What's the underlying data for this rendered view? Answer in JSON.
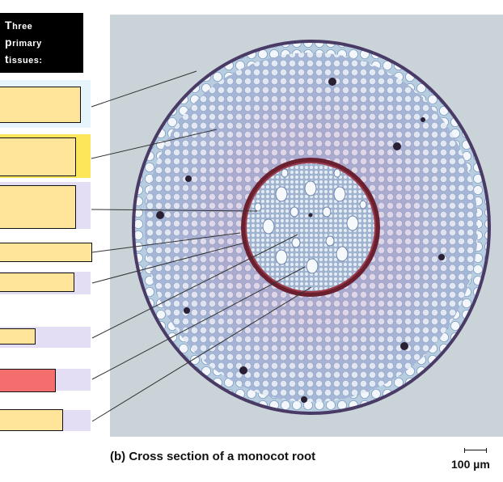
{
  "header": {
    "lines": [
      "Three",
      "primary",
      "tissues:"
    ]
  },
  "caption": "(b) Cross section of a monocot root",
  "scale": {
    "label": "100 µm"
  },
  "colors": {
    "answer_box": "#ffe59a",
    "answer_box_highlight": "#f46e6e",
    "band_blue": "#e6f4fb",
    "band_yellow": "#fde65a",
    "band_lavender": "#e3def3"
  },
  "label_boxes": [
    {
      "name": "dermal-tissue-box",
      "band": "blue",
      "highlighted": false
    },
    {
      "name": "ground-tissue-box",
      "band": "yellow",
      "highlighted": false
    },
    {
      "name": "vascular-tissue-box",
      "band": "lavender",
      "highlighted": false
    },
    {
      "name": "label-box-4",
      "band": "none",
      "highlighted": false
    },
    {
      "name": "label-box-5",
      "band": "lavender",
      "highlighted": false
    },
    {
      "name": "label-box-6",
      "band": "lavender",
      "highlighted": false
    },
    {
      "name": "label-box-7",
      "band": "lavender",
      "highlighted": true
    },
    {
      "name": "label-box-8",
      "band": "lavender",
      "highlighted": false
    }
  ]
}
